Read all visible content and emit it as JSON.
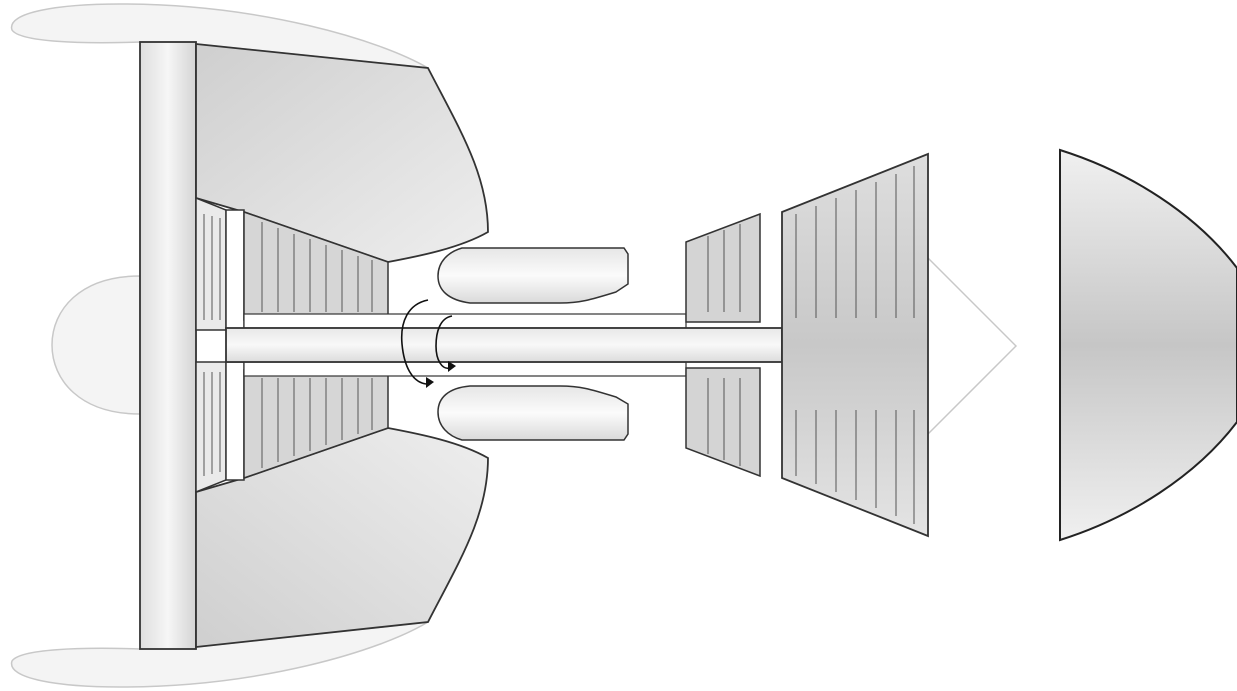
{
  "diagram": {
    "labels": [],
    "colors": {
      "outline": "#333333",
      "ghost_outline": "#c8c8c8",
      "ghost_fill": "#f4f4f4",
      "metal_light": "#f2f2f2",
      "metal_mid": "#d9d9d9",
      "metal_dark": "#bcbcbc",
      "background": "#ffffff"
    },
    "parts": {
      "nacelle": "nacelle-outline",
      "spinner": "spinner-cone",
      "fan_disk": "fan-disk",
      "compressor": "compressor-stage",
      "combustor": "combustion-chamber",
      "shaft": "main-shaft",
      "turbine_hp": "high-pressure-turbine",
      "turbine_lp": "low-pressure-turbine",
      "exhaust_cone": "exhaust-cone",
      "nozzle": "exhaust-nozzle",
      "rotation": "rotation-arrow-icon"
    }
  }
}
